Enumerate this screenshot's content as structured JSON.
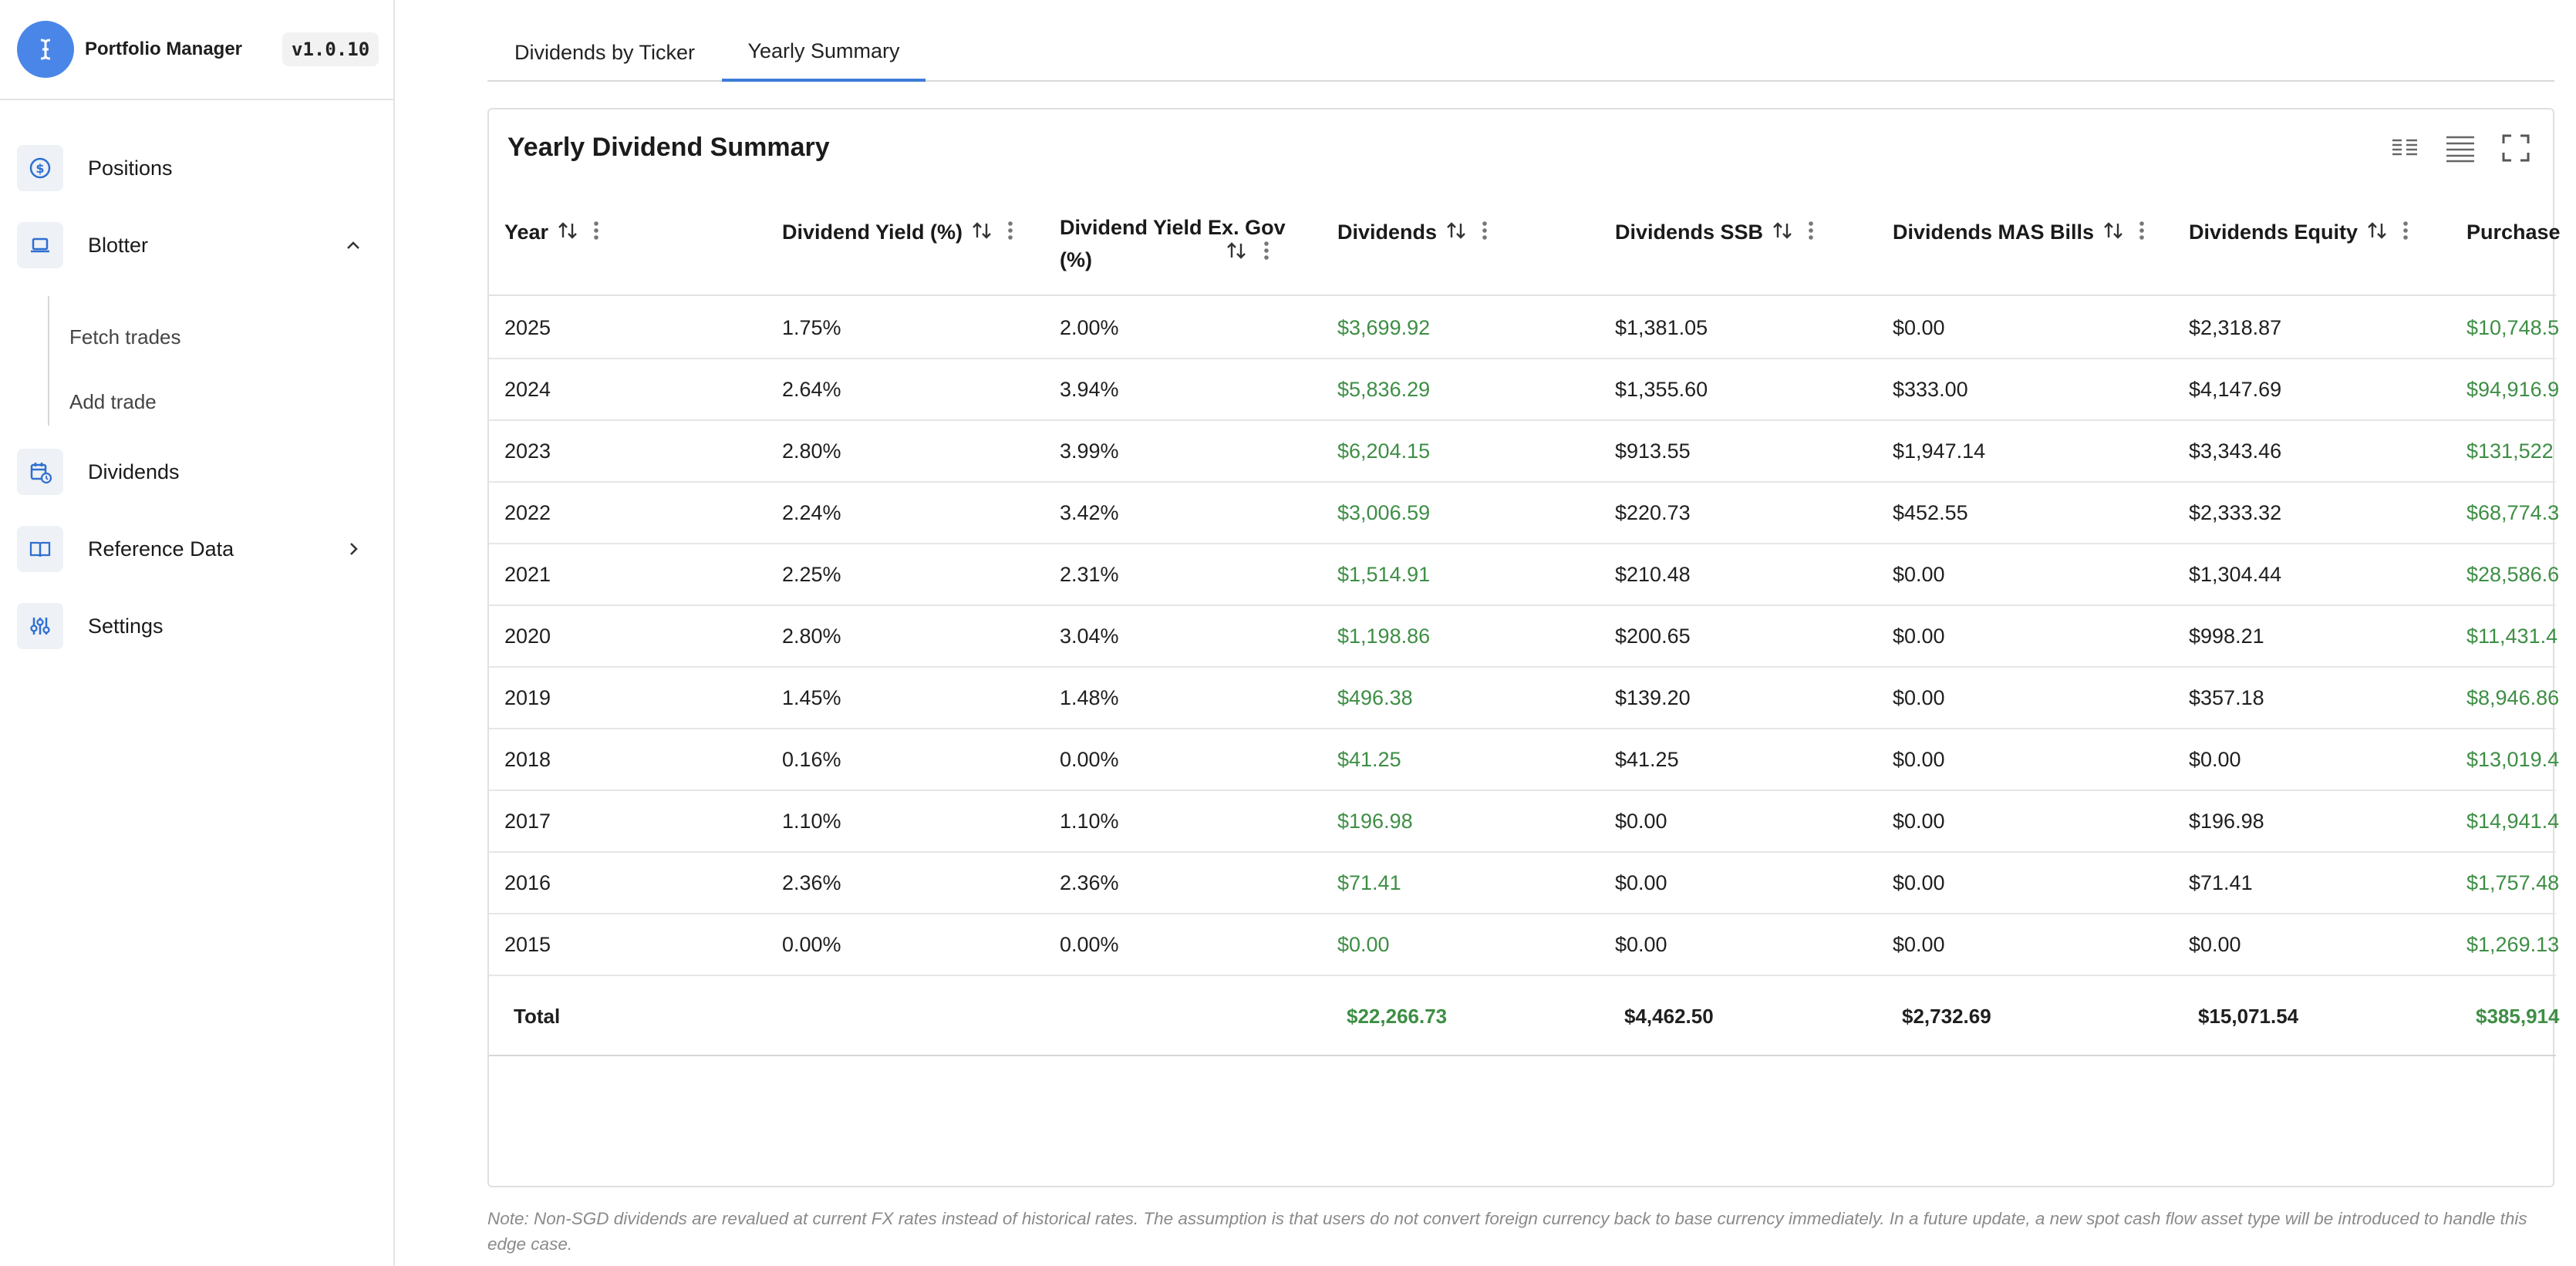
{
  "brand": {
    "app_name": "Portfolio Manager",
    "version": "v1.0.10",
    "logo_icon": "cursor-text-icon",
    "accent": "#4a86e8"
  },
  "nav": {
    "items": [
      {
        "label": "Positions",
        "icon": "dollar-circle-icon"
      },
      {
        "label": "Blotter",
        "icon": "laptop-icon",
        "expanded": true
      },
      {
        "label": "Dividends",
        "icon": "calendar-clock-icon"
      },
      {
        "label": "Reference Data",
        "icon": "book-open-icon"
      },
      {
        "label": "Settings",
        "icon": "sliders-icon"
      }
    ],
    "sub_items": [
      "Fetch trades",
      "Add trade"
    ]
  },
  "tabs": [
    {
      "label": "Dividends by Ticker",
      "active": false
    },
    {
      "label": "Yearly Summary",
      "active": true
    }
  ],
  "card": {
    "title": "Yearly Dividend Summary",
    "tools": [
      "columns-icon",
      "density-icon",
      "fullscreen-icon"
    ]
  },
  "table": {
    "columns": [
      "Year",
      "Dividend Yield (%)",
      "Dividend Yield Ex. Gov (%)",
      "Dividends",
      "Dividends SSB",
      "Dividends MAS Bills",
      "Dividends Equity",
      "Purchase"
    ],
    "rows": [
      [
        "2025",
        "1.75%",
        "2.00%",
        "$3,699.92",
        "$1,381.05",
        "$0.00",
        "$2,318.87",
        "$10,748.5"
      ],
      [
        "2024",
        "2.64%",
        "3.94%",
        "$5,836.29",
        "$1,355.60",
        "$333.00",
        "$4,147.69",
        "$94,916.9"
      ],
      [
        "2023",
        "2.80%",
        "3.99%",
        "$6,204.15",
        "$913.55",
        "$1,947.14",
        "$3,343.46",
        "$131,522"
      ],
      [
        "2022",
        "2.24%",
        "3.42%",
        "$3,006.59",
        "$220.73",
        "$452.55",
        "$2,333.32",
        "$68,774.3"
      ],
      [
        "2021",
        "2.25%",
        "2.31%",
        "$1,514.91",
        "$210.48",
        "$0.00",
        "$1,304.44",
        "$28,586.6"
      ],
      [
        "2020",
        "2.80%",
        "3.04%",
        "$1,198.86",
        "$200.65",
        "$0.00",
        "$998.21",
        "$11,431.4"
      ],
      [
        "2019",
        "1.45%",
        "1.48%",
        "$496.38",
        "$139.20",
        "$0.00",
        "$357.18",
        "$8,946.86"
      ],
      [
        "2018",
        "0.16%",
        "0.00%",
        "$41.25",
        "$41.25",
        "$0.00",
        "$0.00",
        "$13,019.4"
      ],
      [
        "2017",
        "1.10%",
        "1.10%",
        "$196.98",
        "$0.00",
        "$0.00",
        "$196.98",
        "$14,941.4"
      ],
      [
        "2016",
        "2.36%",
        "2.36%",
        "$71.41",
        "$0.00",
        "$0.00",
        "$71.41",
        "$1,757.48"
      ],
      [
        "2015",
        "0.00%",
        "0.00%",
        "$0.00",
        "$0.00",
        "$0.00",
        "$0.00",
        "$1,269.13"
      ]
    ],
    "total": {
      "label": "Total",
      "dividends": "$22,266.73",
      "ssb": "$4,462.50",
      "mas_bills": "$2,732.69",
      "equity": "$15,071.54",
      "purchase": "$385,914"
    },
    "green_color": "#3e8e45"
  },
  "note": "Note: Non-SGD dividends are revalued at current FX rates instead of historical rates. The assumption is that users do not convert foreign currency back to base currency immediately. In a future update, a new spot cash flow asset type will be introduced to handle this edge case."
}
